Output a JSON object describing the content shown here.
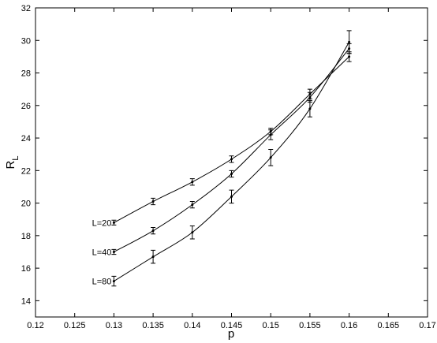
{
  "chart_data": {
    "type": "line",
    "xlabel": "p",
    "ylabel": "R",
    "ylabel_sub": "L",
    "x": [
      0.13,
      0.135,
      0.14,
      0.145,
      0.15,
      0.155,
      0.16
    ],
    "series": [
      {
        "name": "L=20",
        "color": "#000000",
        "values": [
          18.8,
          20.1,
          21.3,
          22.7,
          24.4,
          26.7,
          29.0
        ],
        "errors": [
          0.15,
          0.2,
          0.2,
          0.2,
          0.2,
          0.3,
          0.3
        ]
      },
      {
        "name": "L=40",
        "color": "#000000",
        "values": [
          17.0,
          18.3,
          19.9,
          21.8,
          24.2,
          26.5,
          29.5
        ],
        "errors": [
          0.15,
          0.2,
          0.2,
          0.2,
          0.3,
          0.3,
          0.3
        ]
      },
      {
        "name": "L=80",
        "color": "#000000",
        "values": [
          15.2,
          16.7,
          18.2,
          20.4,
          22.8,
          25.8,
          29.9
        ],
        "errors": [
          0.3,
          0.4,
          0.4,
          0.4,
          0.5,
          0.5,
          0.7
        ]
      }
    ],
    "xlim": [
      0.12,
      0.17
    ],
    "xticks": [
      0.12,
      0.125,
      0.13,
      0.135,
      0.14,
      0.145,
      0.15,
      0.155,
      0.16,
      0.165,
      0.17
    ],
    "ylim": [
      13,
      32
    ],
    "yticks": [
      14,
      16,
      18,
      20,
      22,
      24,
      26,
      28,
      30,
      32
    ],
    "grid": false
  }
}
